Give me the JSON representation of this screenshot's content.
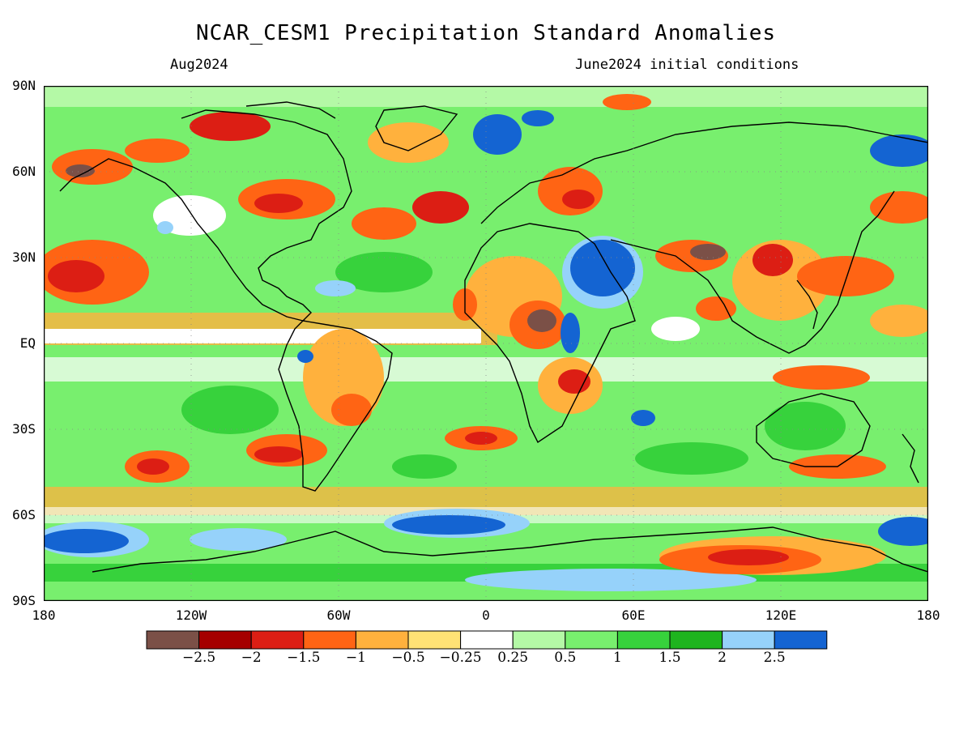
{
  "header": {
    "title": "NCAR_CESM1 Precipitation Standard Anomalies",
    "valid_month": "Aug2024",
    "init": "June2024 initial conditions"
  },
  "axes": {
    "lat_labels": [
      "90N",
      "60N",
      "30N",
      "EQ",
      "30S",
      "60S",
      "90S"
    ],
    "lon_labels": [
      "180",
      "120W",
      "60W",
      "0",
      "60E",
      "120E",
      "180"
    ]
  },
  "colorbar": {
    "colors": [
      "#7b5047",
      "#a50000",
      "#dc1e14",
      "#ff6414",
      "#ffb13d",
      "#ffe275",
      "#ffffff",
      "#b4f9a6",
      "#78ef6e",
      "#37d23c",
      "#1eb41e",
      "#96d2fa",
      "#1464d2"
    ],
    "labels": [
      "−2.5",
      "−2",
      "−1.5",
      "−1",
      "−0.5",
      "−0.25",
      "0.25",
      "0.5",
      "1",
      "1.5",
      "2",
      "2.5"
    ]
  },
  "chart_data": {
    "type": "heatmap",
    "title": "NCAR_CESM1 Precipitation Standard Anomalies",
    "subtitle_left": "Aug2024",
    "subtitle_right": "June2024 initial conditions",
    "x_range": [
      -180,
      180
    ],
    "y_range": [
      -90,
      90
    ],
    "levels": [
      -2.5,
      -2,
      -1.5,
      -1,
      -0.5,
      -0.25,
      0.25,
      0.5,
      1,
      1.5,
      2,
      2.5
    ]
  }
}
